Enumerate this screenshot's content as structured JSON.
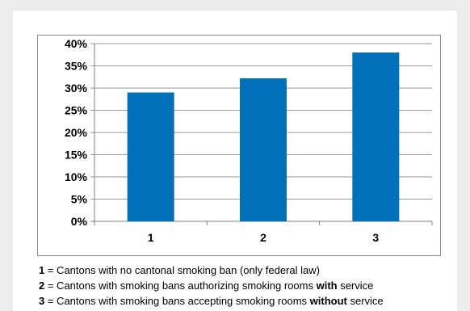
{
  "chart_data": {
    "type": "bar",
    "categories": [
      "1",
      "2",
      "3"
    ],
    "values": [
      29,
      32.2,
      38
    ],
    "ylim": [
      0,
      40
    ],
    "yticks": [
      "0%",
      "5%",
      "10%",
      "15%",
      "20%",
      "25%",
      "30%",
      "35%",
      "40%"
    ],
    "grid": true,
    "bar_color": "#0070b8"
  },
  "legend": [
    {
      "num": "1",
      "pre": " = Cantons with no cantonal smoking ban (only federal law)",
      "emph": "",
      "post": ""
    },
    {
      "num": "2",
      "pre": " = Cantons with smoking bans authorizing smoking rooms ",
      "emph": "with",
      "post": " service"
    },
    {
      "num": "3",
      "pre": " = Cantons with smoking bans accepting smoking rooms ",
      "emph": "without",
      "post": " service"
    }
  ]
}
